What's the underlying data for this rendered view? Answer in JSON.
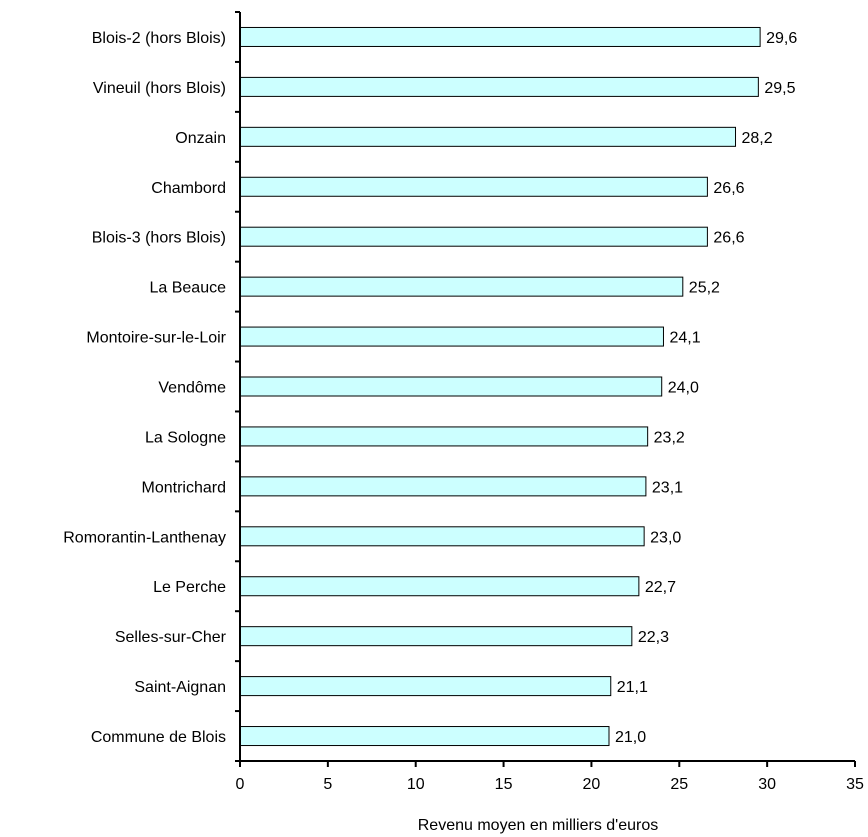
{
  "chart_data": {
    "type": "bar",
    "orientation": "horizontal",
    "categories": [
      "Blois-2 (hors Blois)",
      "Vineuil (hors Blois)",
      "Onzain",
      "Chambord",
      "Blois-3 (hors Blois)",
      "La Beauce",
      "Montoire-sur-le-Loir",
      "Vendôme",
      "La Sologne",
      "Montrichard",
      "Romorantin-Lanthenay",
      "Le Perche",
      "Selles-sur-Cher",
      "Saint-Aignan",
      "Commune de Blois"
    ],
    "values": [
      29.6,
      29.5,
      28.2,
      26.6,
      26.6,
      25.2,
      24.1,
      24.0,
      23.2,
      23.1,
      23.0,
      22.7,
      22.3,
      21.1,
      21.0
    ],
    "value_labels": [
      "29,6",
      "29,5",
      "28,2",
      "26,6",
      "26,6",
      "25,2",
      "24,1",
      "24,0",
      "23,2",
      "23,1",
      "23,0",
      "22,7",
      "22,3",
      "21,1",
      "21,0"
    ],
    "xlabel": "Revenu moyen en milliers d'euros",
    "ylabel": "",
    "xlim": [
      0,
      35
    ],
    "xticks": [
      0,
      5,
      10,
      15,
      20,
      25,
      30,
      35
    ],
    "grid": false,
    "bar_color": "#ccffff",
    "bar_edge_color": "#000000"
  }
}
